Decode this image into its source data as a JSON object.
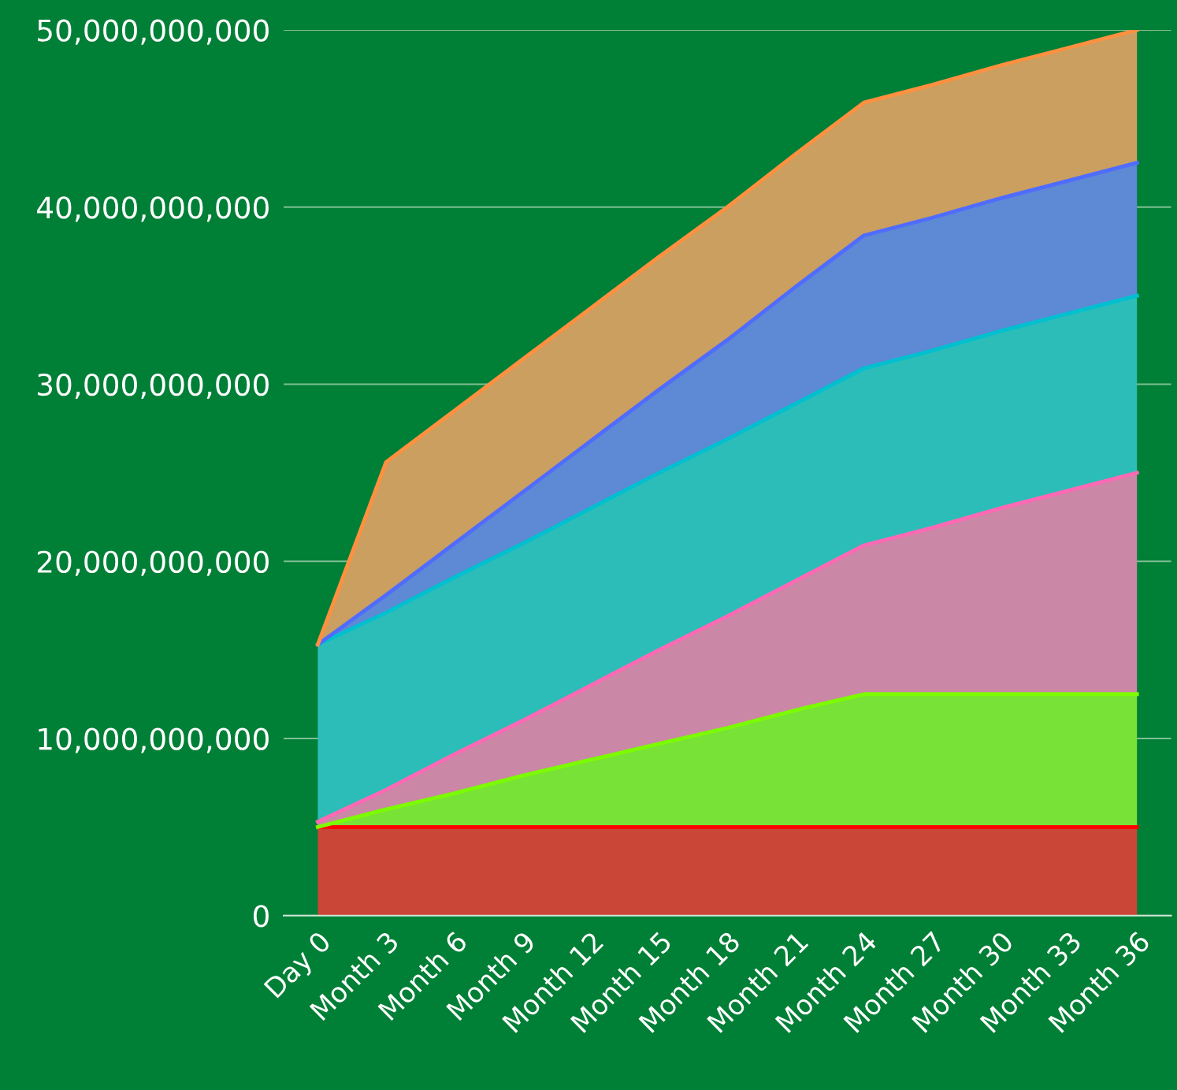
{
  "chart_data": {
    "type": "area",
    "stacked": true,
    "categories": [
      "Day 0",
      "Month 3",
      "Month 6",
      "Month 9",
      "Month 12",
      "Month 15",
      "Month 18",
      "Month 21",
      "Month 24",
      "Month 27",
      "Month 30",
      "Month 33",
      "Month 36"
    ],
    "series": [
      {
        "color": "#ff0000",
        "values": [
          5000000000,
          5000000000,
          5000000000,
          5000000000,
          5000000000,
          5000000000,
          5000000000,
          5000000000,
          5000000000,
          5000000000,
          5000000000,
          5000000000,
          5000000000
        ]
      },
      {
        "color": "#7cfc00",
        "values": [
          0,
          1000000000,
          1900000000,
          2900000000,
          3800000000,
          4700000000,
          5600000000,
          6600000000,
          7500000000,
          7500000000,
          7500000000,
          7500000000,
          7500000000
        ]
      },
      {
        "color": "#ff69b4",
        "values": [
          300000000,
          1100000000,
          2200000000,
          3100000000,
          4200000000,
          5300000000,
          6300000000,
          7300000000,
          8400000000,
          9400000000,
          10500000000,
          11500000000,
          12500000000
        ]
      },
      {
        "color": "#00c0d0",
        "values": [
          10000000000,
          10000000000,
          10000000000,
          10000000000,
          10000000000,
          10000000000,
          10000000000,
          10000000000,
          10000000000,
          10000000000,
          10000000000,
          10000000000,
          10000000000
        ]
      },
      {
        "color": "#4f6cff",
        "values": [
          0,
          1000000000,
          1900000000,
          2900000000,
          3800000000,
          4700000000,
          5600000000,
          6600000000,
          7500000000,
          7500000000,
          7500000000,
          7500000000,
          7500000000
        ]
      },
      {
        "color": "#ff9040",
        "values": [
          0,
          7500000000,
          7500000000,
          7500000000,
          7500000000,
          7500000000,
          7500000000,
          7500000000,
          7500000000,
          7500000000,
          7500000000,
          7500000000,
          7500000000
        ]
      }
    ],
    "ylim": [
      0,
      50000000000
    ],
    "yticks": [
      0,
      {
        "value": 10000000000,
        "label": "10,000,000,000"
      },
      {
        "value": 20000000000,
        "label": "20,000,000,000"
      },
      {
        "value": 30000000000,
        "label": "30,000,000,000"
      },
      {
        "value": 40000000000,
        "label": "40,000,000,000"
      },
      {
        "value": 50000000000,
        "label": "50,000,000,000"
      }
    ],
    "grid": "y",
    "legend": false
  }
}
